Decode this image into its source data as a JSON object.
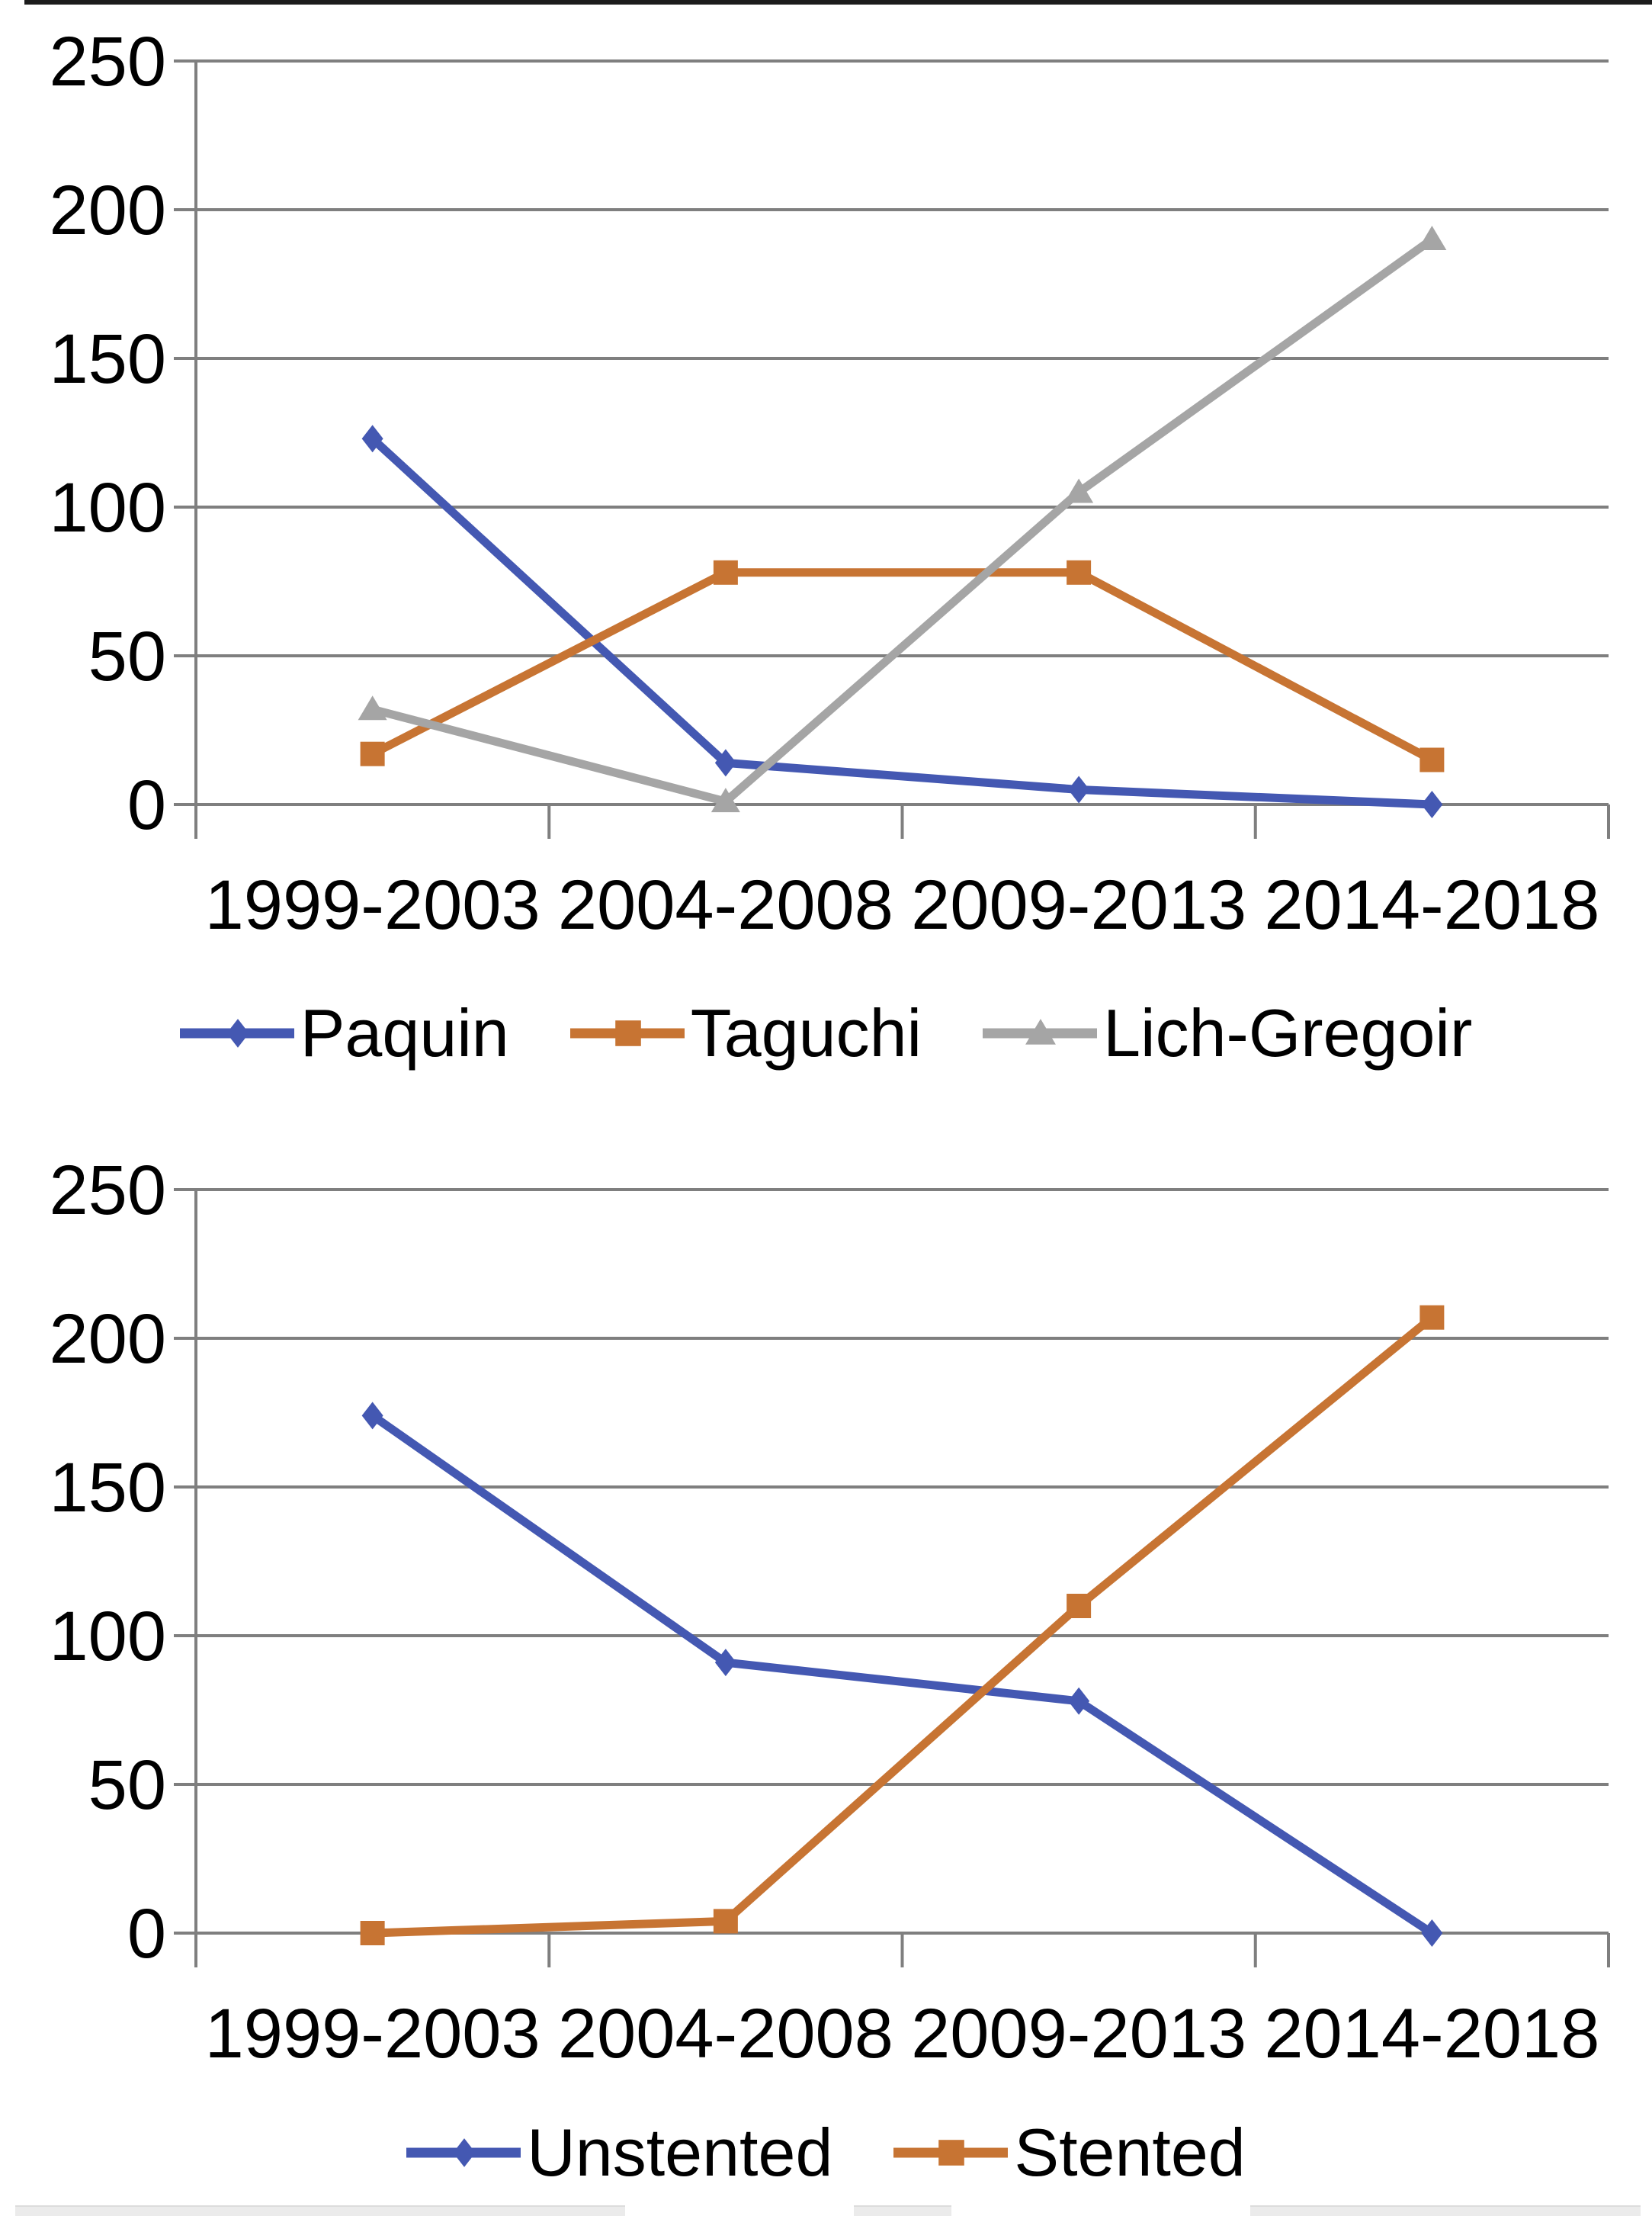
{
  "page": {
    "background": "#ffffff",
    "top_edge_artifact_color": "#1c1c1c",
    "bottom_edge_artifact_color": "#ebebeb"
  },
  "axis_style": {
    "grid_color": "#7f7f7f",
    "axis_color": "#7f7f7f",
    "label_color": "#000000"
  },
  "chart_data": [
    {
      "type": "line",
      "title": "",
      "categories": [
        "1999-2003",
        "2004-2008",
        "2009-2013",
        "2014-2018"
      ],
      "series": [
        {
          "name": "Paquin",
          "marker": "diamond",
          "color": "#4458B2",
          "values": [
            123,
            14,
            5,
            0
          ]
        },
        {
          "name": "Taguchi",
          "marker": "square",
          "color": "#C77433",
          "values": [
            17,
            78,
            78,
            15
          ]
        },
        {
          "name": "Lich-Gregoir",
          "marker": "triangle",
          "color": "#A5A5A5",
          "values": [
            32,
            1,
            105,
            190
          ]
        }
      ],
      "ylim": [
        0,
        250
      ],
      "ytick_step": 50,
      "ytick_labels": [
        "0",
        "50",
        "100",
        "150",
        "200",
        "250"
      ],
      "xlabel": "",
      "ylabel": "",
      "grid": true,
      "legend_position": "bottom"
    },
    {
      "type": "line",
      "title": "",
      "categories": [
        "1999-2003",
        "2004-2008",
        "2009-2013",
        "2014-2018"
      ],
      "series": [
        {
          "name": "Unstented",
          "marker": "diamond",
          "color": "#4458B2",
          "values": [
            174,
            91,
            78,
            0
          ]
        },
        {
          "name": "Stented",
          "marker": "square",
          "color": "#C77433",
          "values": [
            0,
            4,
            110,
            207
          ]
        }
      ],
      "ylim": [
        0,
        250
      ],
      "ytick_step": 50,
      "ytick_labels": [
        "0",
        "50",
        "100",
        "150",
        "200",
        "250"
      ],
      "xlabel": "",
      "ylabel": "",
      "grid": true,
      "legend_position": "bottom"
    }
  ]
}
